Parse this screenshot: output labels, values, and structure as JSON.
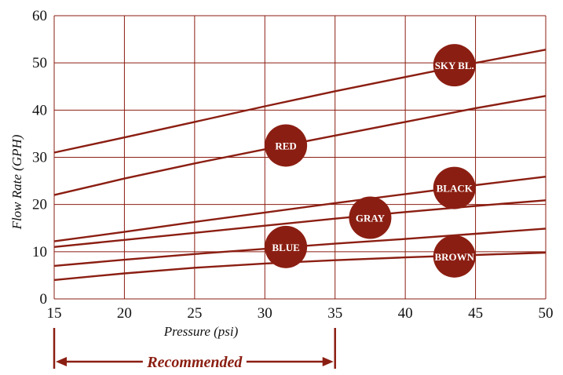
{
  "chart_data": {
    "type": "line",
    "title": "",
    "xlabel": "Pressure (psi)",
    "ylabel": "Flow Rate (GPH)",
    "xlim": [
      15,
      50
    ],
    "ylim": [
      0,
      60
    ],
    "x_ticks": [
      15,
      20,
      25,
      30,
      35,
      40,
      45,
      50
    ],
    "y_ticks": [
      0,
      10,
      20,
      30,
      40,
      50,
      60
    ],
    "grid": true,
    "colors": {
      "line": "#8B1E12",
      "grid": "#8B1E12",
      "axis_text": "#111111",
      "label_fill": "#8B1E12",
      "label_text": "#ffffff",
      "annotation": "#8B1E12"
    },
    "series": [
      {
        "name": "SKY BL.",
        "x": [
          15,
          20,
          25,
          30,
          35,
          40,
          45,
          50
        ],
        "values": [
          31,
          34.2,
          37.5,
          40.8,
          44,
          47,
          50,
          52.8
        ],
        "label_at": [
          43.5,
          49.5
        ]
      },
      {
        "name": "RED",
        "x": [
          15,
          20,
          25,
          30,
          35,
          40,
          45,
          50
        ],
        "values": [
          22,
          25.5,
          28.7,
          31.7,
          34.6,
          37.5,
          40.4,
          43
        ],
        "label_at": [
          31.5,
          32.5
        ]
      },
      {
        "name": "BLACK",
        "x": [
          15,
          20,
          25,
          30,
          35,
          40,
          45,
          50
        ],
        "values": [
          12.2,
          14.2,
          16.3,
          18.3,
          20.3,
          22.2,
          24.1,
          25.9
        ],
        "label_at": [
          43.5,
          23.5
        ]
      },
      {
        "name": "GRAY",
        "x": [
          15,
          20,
          25,
          30,
          35,
          40,
          45,
          50
        ],
        "values": [
          11,
          12.5,
          14,
          15.5,
          17,
          18.4,
          19.7,
          20.9
        ],
        "label_at": [
          37.5,
          17.2
        ]
      },
      {
        "name": "BLUE",
        "x": [
          15,
          20,
          25,
          30,
          35,
          40,
          45,
          50
        ],
        "values": [
          7,
          8.3,
          9.5,
          10.6,
          11.7,
          12.7,
          13.8,
          14.9
        ],
        "label_at": [
          31.5,
          11
        ]
      },
      {
        "name": "BROWN",
        "x": [
          15,
          20,
          25,
          30,
          35,
          40,
          45,
          50
        ],
        "values": [
          4,
          5.4,
          6.6,
          7.5,
          8.2,
          8.8,
          9.3,
          9.8
        ],
        "label_at": [
          43.5,
          9
        ]
      }
    ],
    "annotation": {
      "text": "Recommended",
      "x_range": [
        15,
        35
      ]
    }
  }
}
